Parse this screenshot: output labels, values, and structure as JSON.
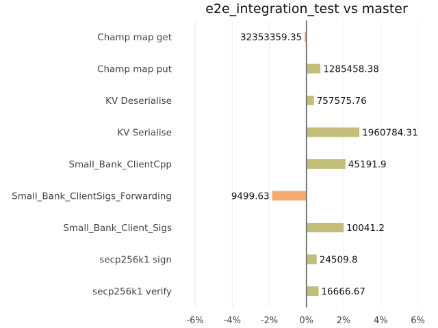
{
  "chart_data": {
    "type": "bar",
    "orientation": "horizontal",
    "title": "e2e_integration_test vs master",
    "xlabel": "",
    "ylabel": "",
    "xlim": [
      -7,
      6.2
    ],
    "x_ticks": [
      -6,
      -4,
      -2,
      0,
      2,
      4,
      6
    ],
    "x_tick_labels": [
      "-6%",
      "-4%",
      "-2%",
      "0%",
      "2%",
      "4%",
      "6%"
    ],
    "grid": true,
    "legend": "none",
    "colors": {
      "positive": "#c3bf7a",
      "negative": "#f7aa6f",
      "zero_line": "#777777"
    },
    "categories": [
      "Champ map get",
      "Champ map put",
      "KV Deserialise",
      "KV Serialise",
      "Small_Bank_ClientCpp",
      "Small_Bank_ClientSigs_Forwarding",
      "Small_Bank_Client_Sigs",
      "secp256k1 sign",
      "secp256k1 verify"
    ],
    "values": [
      -0.1,
      0.75,
      0.4,
      2.85,
      2.1,
      -1.85,
      2.0,
      0.55,
      0.65
    ],
    "data_labels": [
      "32353359.35",
      "1285458.38",
      "757575.76",
      "1960784.31",
      "45191.9",
      "9499.63",
      "10041.2",
      "24509.8",
      "16666.67"
    ]
  }
}
